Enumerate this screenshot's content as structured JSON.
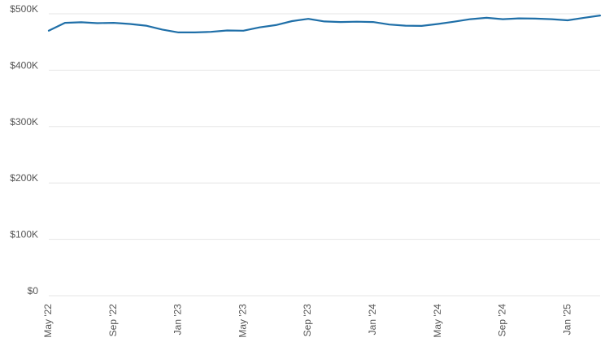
{
  "colors": {
    "series": "#1f6fa8",
    "grid": "#e6e6e6",
    "tick_text": "#555555",
    "background": "#ffffff"
  },
  "chart_data": {
    "type": "line",
    "title": "",
    "xlabel": "",
    "ylabel": "",
    "ylim": [
      0,
      500000
    ],
    "grid": true,
    "legend": "none",
    "y_ticks": [
      {
        "value": 0,
        "label": "$0"
      },
      {
        "value": 100000,
        "label": "$100K"
      },
      {
        "value": 200000,
        "label": "$200K"
      },
      {
        "value": 300000,
        "label": "$300K"
      },
      {
        "value": 400000,
        "label": "$400K"
      },
      {
        "value": 500000,
        "label": "$500K"
      }
    ],
    "x_ticks": [
      {
        "date": "2022-05",
        "label": "May '22"
      },
      {
        "date": "2022-09",
        "label": "Sep '22"
      },
      {
        "date": "2023-01",
        "label": "Jan '23"
      },
      {
        "date": "2023-05",
        "label": "May '23"
      },
      {
        "date": "2023-09",
        "label": "Sep '23"
      },
      {
        "date": "2024-01",
        "label": "Jan '24"
      },
      {
        "date": "2024-05",
        "label": "May '24"
      },
      {
        "date": "2024-09",
        "label": "Sep '24"
      },
      {
        "date": "2025-01",
        "label": "Jan '25"
      }
    ],
    "x": [
      "2022-05",
      "2022-06",
      "2022-07",
      "2022-08",
      "2022-09",
      "2022-10",
      "2022-11",
      "2022-12",
      "2023-01",
      "2023-02",
      "2023-03",
      "2023-04",
      "2023-05",
      "2023-06",
      "2023-07",
      "2023-08",
      "2023-09",
      "2023-10",
      "2023-11",
      "2023-12",
      "2024-01",
      "2024-02",
      "2024-03",
      "2024-04",
      "2024-05",
      "2024-06",
      "2024-07",
      "2024-08",
      "2024-09",
      "2024-10",
      "2024-11",
      "2024-12",
      "2025-01",
      "2025-02",
      "2025-03"
    ],
    "series": [
      {
        "values": [
          470000,
          484000,
          485000,
          483500,
          484000,
          482000,
          479000,
          472000,
          467000,
          467000,
          468000,
          470500,
          470000,
          476000,
          480000,
          487000,
          491000,
          486500,
          485500,
          486000,
          485500,
          481000,
          479000,
          478500,
          482000,
          486000,
          490500,
          493000,
          490500,
          492000,
          491500,
          490500,
          488500,
          493000,
          497000
        ]
      }
    ]
  }
}
